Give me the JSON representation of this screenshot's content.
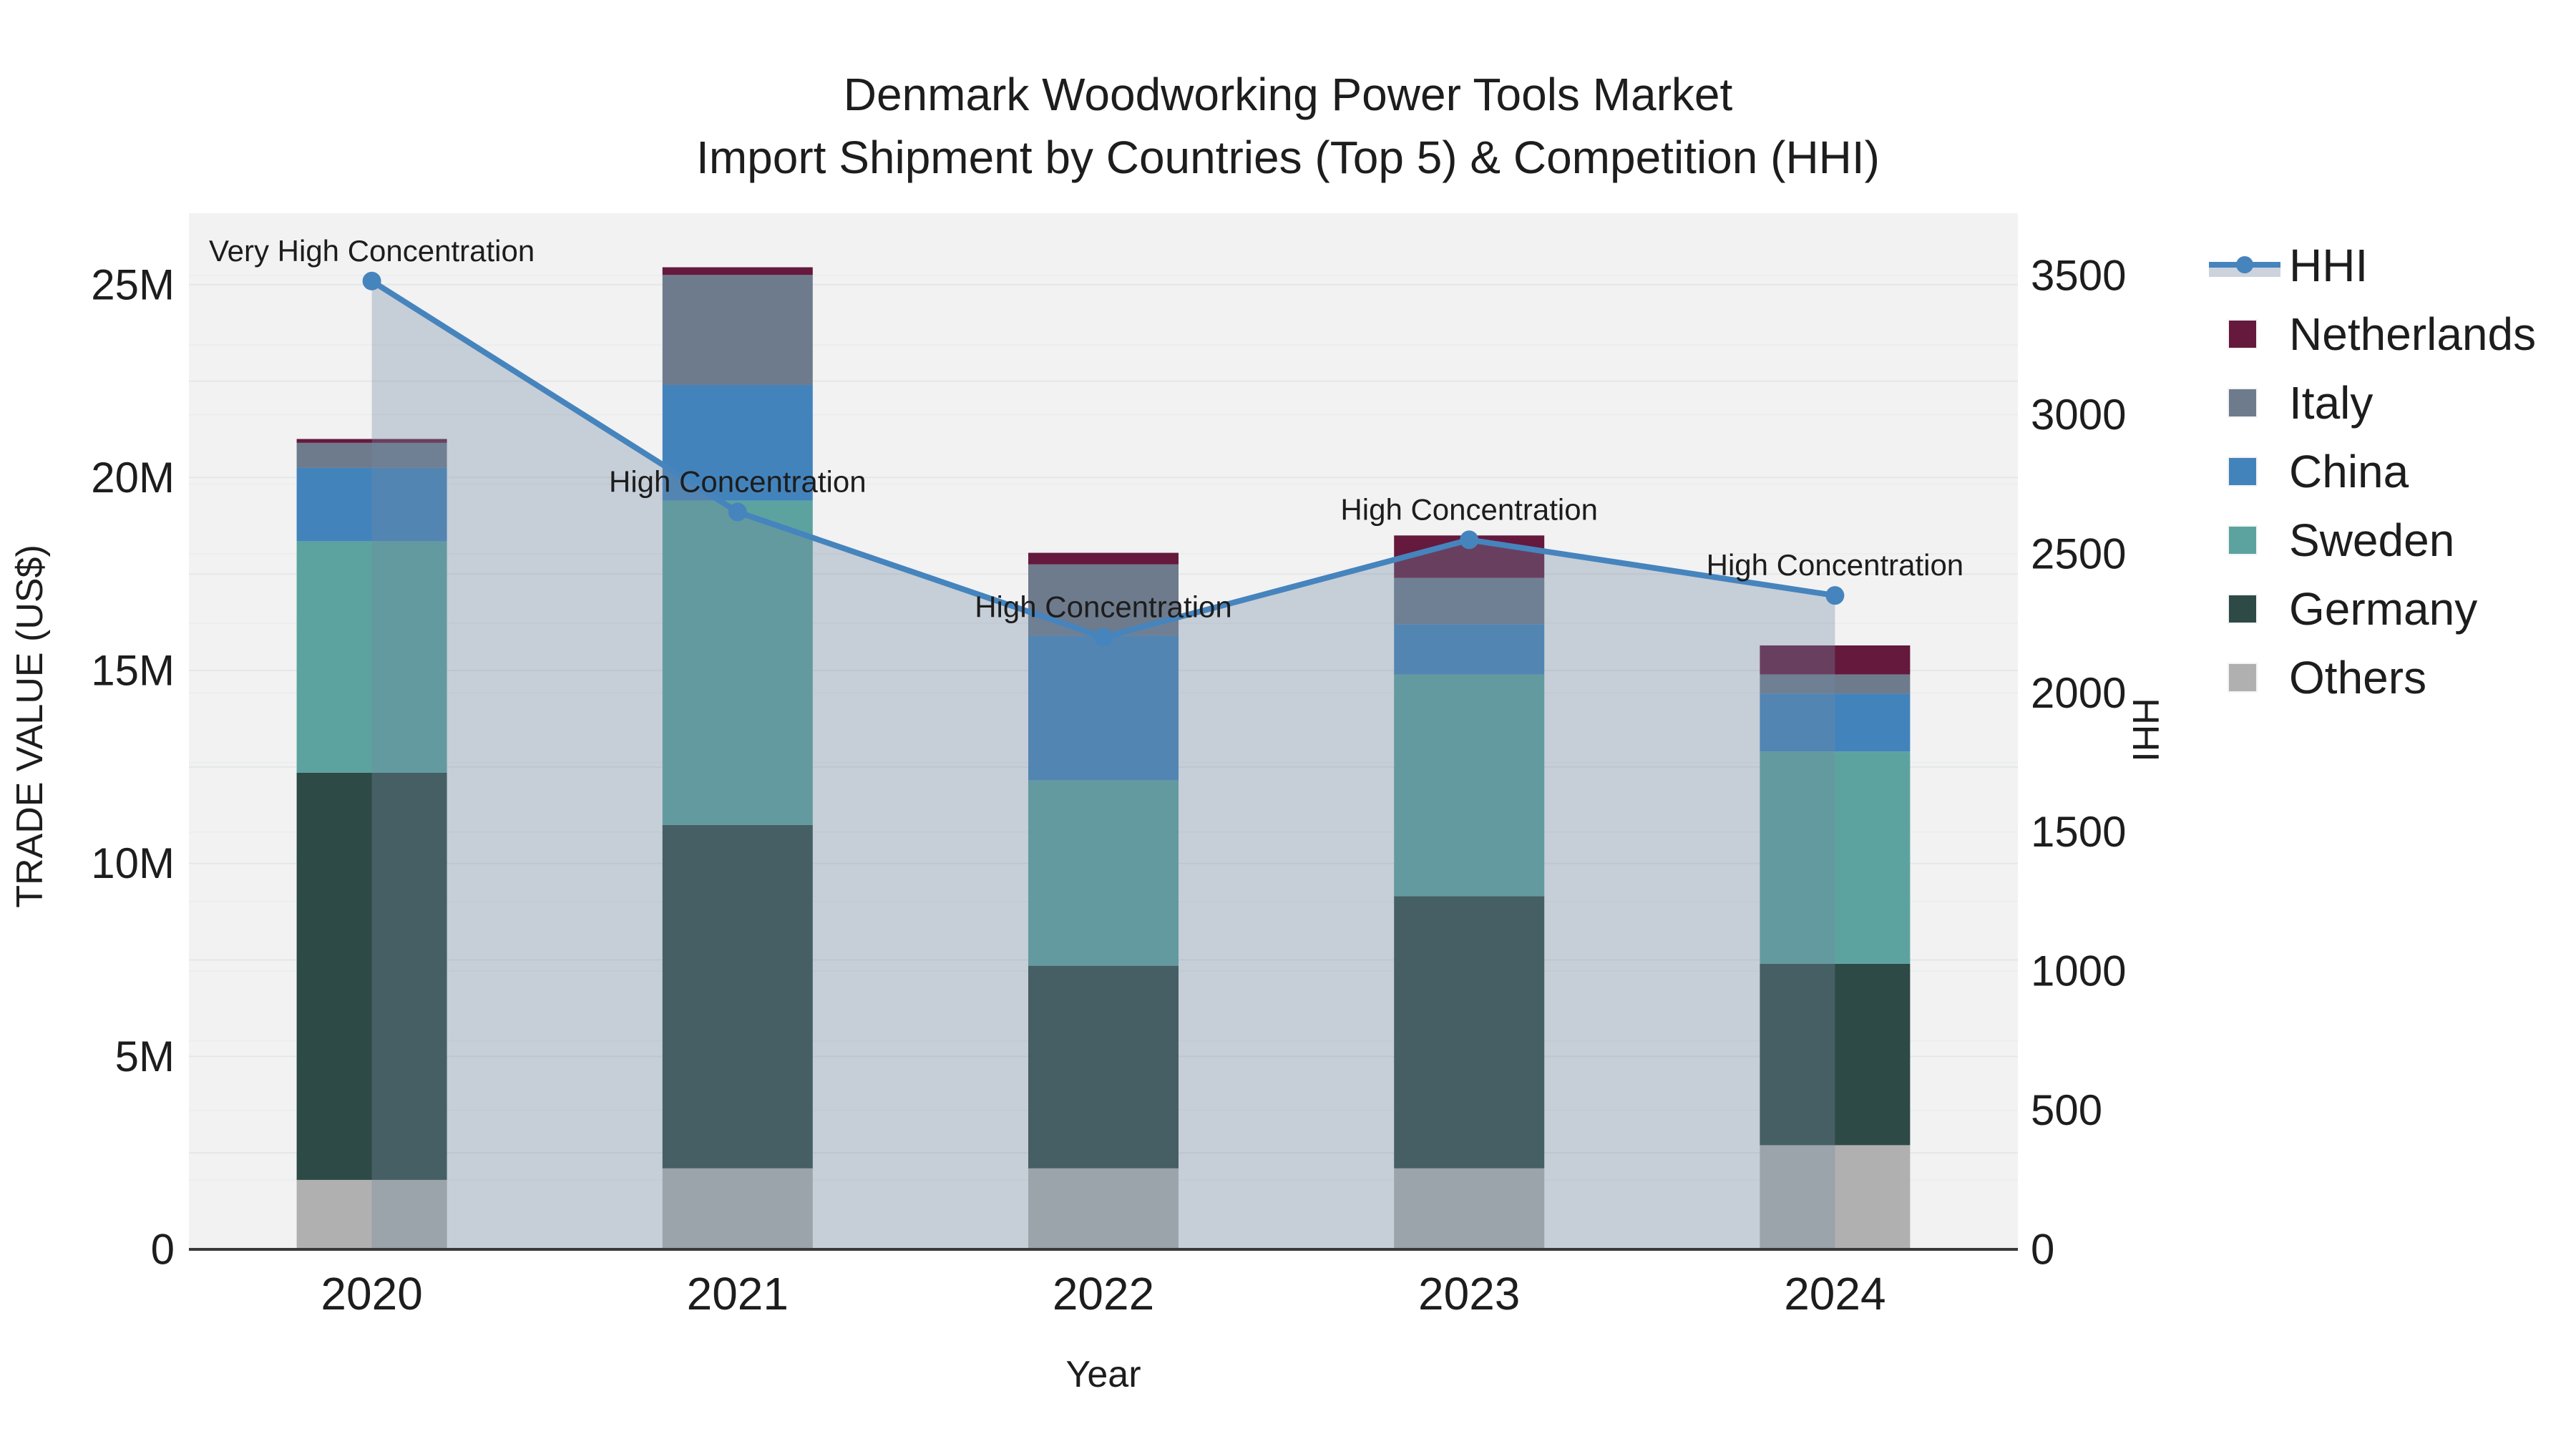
{
  "title": {
    "line1": "Denmark Woodworking Power Tools Market",
    "line2": "Import Shipment by Countries (Top 5) & Competition (HHI)"
  },
  "axes": {
    "x_title": "Year",
    "x_ticks": [
      "2020",
      "2021",
      "2022",
      "2023",
      "2024"
    ],
    "y_left_title": "TRADE VALUE (US$)",
    "y_left_ticks": [
      "0",
      "5M",
      "10M",
      "15M",
      "20M",
      "25M"
    ],
    "y_left_tick_values_m": [
      0,
      5,
      10,
      15,
      20,
      25
    ],
    "y_right_title": "HHI",
    "y_right_ticks": [
      "0",
      "500",
      "1000",
      "1500",
      "2000",
      "2500",
      "3000",
      "3500"
    ],
    "y_right_tick_values": [
      0,
      500,
      1000,
      1500,
      2000,
      2500,
      3000,
      3500
    ]
  },
  "colors": {
    "plot_bg": "#f2f2f3",
    "grid_major": "#e4e6e8",
    "grid_minor": "#ebedee",
    "axis_line": "#3a3a3a",
    "text": "#1d1d1d",
    "hhi_line": "#4684bd",
    "hhi_fill": "rgba(115,138,160,0.34)",
    "hhi_band_swatch": "#ccd3dc",
    "netherlands": "#65193d",
    "italy": "#6e7b8d",
    "china": "#4383bc",
    "sweden": "#5ca3a0",
    "germany": "#2e4a46",
    "others": "#b0b0b0"
  },
  "legend": {
    "items": [
      {
        "label": "HHI",
        "type": "line",
        "color": "#4684bd"
      },
      {
        "label": "Netherlands",
        "type": "box",
        "color": "#65193d"
      },
      {
        "label": "Italy",
        "type": "box",
        "color": "#6e7b8d"
      },
      {
        "label": "China",
        "type": "box",
        "color": "#4383bc"
      },
      {
        "label": "Sweden",
        "type": "box",
        "color": "#5ca3a0"
      },
      {
        "label": "Germany",
        "type": "box",
        "color": "#2e4a46"
      },
      {
        "label": "Others",
        "type": "box",
        "color": "#b0b0b0"
      }
    ]
  },
  "chart_data": {
    "type": "bar+line",
    "title": "Denmark Woodworking Power Tools Market — Import Shipment by Countries (Top 5) & Competition (HHI)",
    "xlabel": "Year",
    "ylabel_left": "TRADE VALUE (US$)",
    "ylabel_right": "HHI",
    "ylim_left_millions": [
      0,
      26.85
    ],
    "ylim_right": [
      0,
      3500
    ],
    "grid": true,
    "legend_position": "right",
    "categories": [
      "2020",
      "2021",
      "2022",
      "2023",
      "2024"
    ],
    "stack_note": "series listed bottom-to-top of stack; values in millions US$",
    "series": [
      {
        "name": "Others",
        "color": "#b0b0b0",
        "values": [
          1.8,
          2.1,
          2.1,
          2.1,
          2.7
        ]
      },
      {
        "name": "Germany",
        "color": "#2e4a46",
        "values": [
          10.55,
          8.9,
          5.25,
          7.05,
          4.7
        ]
      },
      {
        "name": "Sweden",
        "color": "#5ca3a0",
        "values": [
          6.0,
          8.4,
          4.8,
          5.75,
          5.5
        ]
      },
      {
        "name": "China",
        "color": "#4383bc",
        "values": [
          1.9,
          3.0,
          3.75,
          1.3,
          1.5
        ]
      },
      {
        "name": "Italy",
        "color": "#6e7b8d",
        "values": [
          0.65,
          2.85,
          1.85,
          1.2,
          0.5
        ]
      },
      {
        "name": "Netherlands",
        "color": "#65193d",
        "values": [
          0.1,
          0.2,
          0.3,
          1.1,
          0.75
        ]
      }
    ],
    "bar_totals_millions": [
      21.0,
      25.45,
      18.05,
      18.5,
      15.65
    ],
    "hhi": {
      "name": "HHI",
      "values": [
        3480,
        2650,
        2200,
        2550,
        2350
      ],
      "line_color": "#4684bd",
      "fill": "area-to-zero over bars",
      "annotations": [
        "Very High Concentration",
        "High Concentration",
        "High Concentration",
        "High Concentration",
        "High Concentration"
      ]
    }
  }
}
